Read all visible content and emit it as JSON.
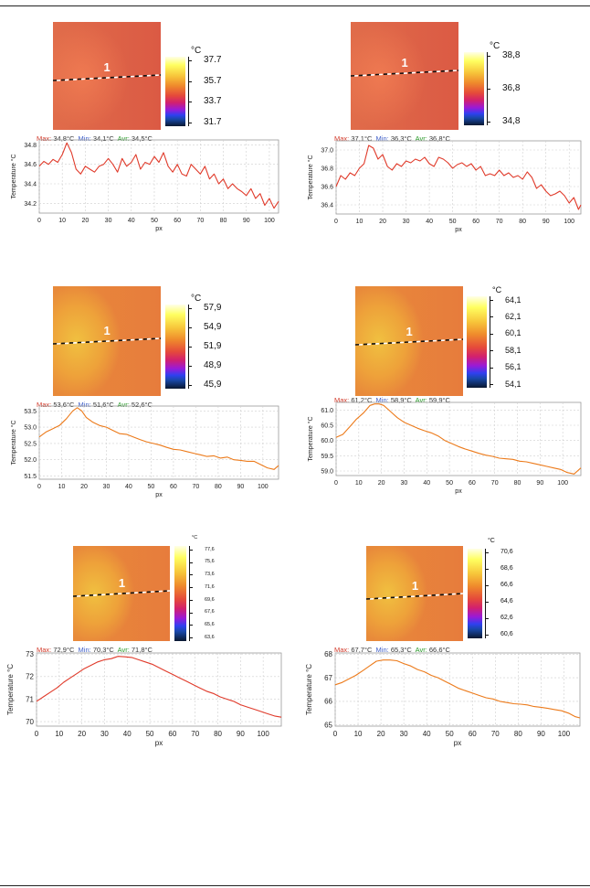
{
  "chart_data": [
    {
      "type": "line",
      "xlabel": "px",
      "ylabel": "Temperature °C",
      "line_color": "#e03a2a",
      "xlim": [
        0,
        104
      ],
      "ylim": [
        34.1,
        34.85
      ],
      "xticks": [
        "0",
        "10",
        "20",
        "30",
        "40",
        "50",
        "60",
        "70",
        "80",
        "90",
        "100"
      ],
      "yticks": [
        "34.2",
        "34.4",
        "34.6",
        "34.8"
      ],
      "yvals": [
        34.2,
        34.4,
        34.6,
        34.8
      ],
      "grid": true,
      "stats": {
        "max": "34,8°C",
        "min": "34,1°C",
        "avr": "34,5°C"
      },
      "marker_label": "1",
      "colorbar_unit": "°C",
      "colorbar_ticks": [
        "37.7",
        "35.7",
        "33.7",
        "31.7"
      ],
      "series": [
        {
          "x": [
            0,
            2,
            4,
            6,
            8,
            10,
            12,
            14,
            16,
            18,
            20,
            22,
            24,
            26,
            28,
            30,
            32,
            34,
            36,
            38,
            40,
            42,
            44,
            46,
            48,
            50,
            52,
            54,
            56,
            58,
            60,
            62,
            64,
            66,
            68,
            70,
            72,
            74,
            76,
            78,
            80,
            82,
            84,
            86,
            88,
            90,
            92,
            94,
            96,
            98,
            100,
            102,
            104
          ],
          "y": [
            34.58,
            34.63,
            34.6,
            34.65,
            34.62,
            34.7,
            34.82,
            34.72,
            34.55,
            34.5,
            34.58,
            34.55,
            34.52,
            34.58,
            34.6,
            34.66,
            34.6,
            34.52,
            34.66,
            34.58,
            34.62,
            34.7,
            34.55,
            34.62,
            34.6,
            34.68,
            34.62,
            34.72,
            34.58,
            34.52,
            34.6,
            34.5,
            34.48,
            34.6,
            34.55,
            34.5,
            34.58,
            34.45,
            34.5,
            34.4,
            34.45,
            34.35,
            34.4,
            34.35,
            34.32,
            34.28,
            34.35,
            34.25,
            34.3,
            34.18,
            34.25,
            34.15,
            34.22
          ]
        }
      ]
    },
    {
      "type": "line",
      "xlabel": "px",
      "ylabel": "Temperature °C",
      "line_color": "#e03a2a",
      "xlim": [
        0,
        105
      ],
      "ylim": [
        36.3,
        37.1
      ],
      "xticks": [
        "0",
        "10",
        "20",
        "30",
        "40",
        "50",
        "60",
        "70",
        "80",
        "90",
        "100"
      ],
      "yticks": [
        "36.4",
        "36.6",
        "36.8",
        "37.0"
      ],
      "yvals": [
        36.4,
        36.6,
        36.8,
        37.0
      ],
      "grid": true,
      "stats": {
        "max": "37,1°C",
        "min": "36,3°C",
        "avr": "36,8°C"
      },
      "marker_label": "1",
      "colorbar_unit": "°C",
      "colorbar_ticks": [
        "38,8",
        "36,8",
        "34,8"
      ],
      "series": [
        {
          "x": [
            0,
            2,
            4,
            6,
            8,
            10,
            12,
            14,
            16,
            18,
            20,
            22,
            24,
            26,
            28,
            30,
            32,
            34,
            36,
            38,
            40,
            42,
            44,
            46,
            48,
            50,
            52,
            54,
            56,
            58,
            60,
            62,
            64,
            66,
            68,
            70,
            72,
            74,
            76,
            78,
            80,
            82,
            84,
            86,
            88,
            90,
            92,
            94,
            96,
            98,
            100,
            102,
            104,
            105
          ],
          "y": [
            36.6,
            36.72,
            36.68,
            36.75,
            36.72,
            36.8,
            36.85,
            37.05,
            37.02,
            36.9,
            36.95,
            36.82,
            36.78,
            36.85,
            36.82,
            36.88,
            36.86,
            36.9,
            36.88,
            36.92,
            36.85,
            36.82,
            36.92,
            36.9,
            36.86,
            36.8,
            36.84,
            36.86,
            36.82,
            36.85,
            36.78,
            36.82,
            36.72,
            36.74,
            36.72,
            36.78,
            36.72,
            36.75,
            36.7,
            36.72,
            36.68,
            36.76,
            36.7,
            36.58,
            36.62,
            36.55,
            36.5,
            36.52,
            36.55,
            36.5,
            36.42,
            36.48,
            36.35,
            36.4
          ]
        }
      ]
    },
    {
      "type": "line",
      "xlabel": "px",
      "ylabel": "Temperature °C",
      "line_color": "#ec7a1a",
      "xlim": [
        0,
        107
      ],
      "ylim": [
        51.4,
        53.65
      ],
      "xticks": [
        "0",
        "10",
        "20",
        "30",
        "40",
        "50",
        "60",
        "70",
        "80",
        "90",
        "100"
      ],
      "yticks": [
        "51.5",
        "52.0",
        "52.5",
        "53.0",
        "53.5"
      ],
      "yvals": [
        51.5,
        52.0,
        52.5,
        53.0,
        53.5
      ],
      "grid": true,
      "stats": {
        "max": "53,6°C",
        "min": "51,6°C",
        "avr": "52,6°C"
      },
      "marker_label": "1",
      "colorbar_unit": "°C",
      "colorbar_ticks": [
        "57,9",
        "54,9",
        "51,9",
        "48,9",
        "45,9"
      ],
      "series": [
        {
          "x": [
            0,
            3,
            6,
            9,
            12,
            15,
            17,
            19,
            21,
            24,
            27,
            30,
            33,
            36,
            39,
            42,
            45,
            48,
            51,
            54,
            57,
            60,
            63,
            66,
            69,
            72,
            75,
            78,
            81,
            84,
            87,
            90,
            93,
            96,
            99,
            102,
            105,
            107
          ],
          "y": [
            52.7,
            52.85,
            52.95,
            53.05,
            53.25,
            53.5,
            53.6,
            53.5,
            53.3,
            53.15,
            53.05,
            53.0,
            52.9,
            52.8,
            52.78,
            52.7,
            52.62,
            52.55,
            52.5,
            52.45,
            52.38,
            52.32,
            52.3,
            52.25,
            52.2,
            52.15,
            52.1,
            52.12,
            52.05,
            52.08,
            52.0,
            51.98,
            51.95,
            51.95,
            51.85,
            51.75,
            51.7,
            51.82
          ]
        }
      ]
    },
    {
      "type": "line",
      "xlabel": "px",
      "ylabel": "Temperature °C",
      "line_color": "#ec7a1a",
      "xlim": [
        0,
        108
      ],
      "ylim": [
        58.85,
        61.25
      ],
      "xticks": [
        "0",
        "10",
        "20",
        "30",
        "40",
        "50",
        "60",
        "70",
        "80",
        "90",
        "100"
      ],
      "yticks": [
        "59.0",
        "59.5",
        "60.0",
        "60.5",
        "61.0"
      ],
      "yvals": [
        59.0,
        59.5,
        60.0,
        60.5,
        61.0
      ],
      "grid": true,
      "stats": {
        "max": "61,2°C",
        "min": "58,9°C",
        "avr": "59,9°C"
      },
      "marker_label": "1",
      "colorbar_unit": "°C",
      "colorbar_ticks": [
        "64,1",
        "62,1",
        "60,1",
        "58,1",
        "56,1",
        "54,1"
      ],
      "series": [
        {
          "x": [
            0,
            3,
            6,
            9,
            12,
            15,
            17,
            19,
            21,
            24,
            27,
            30,
            33,
            36,
            39,
            42,
            45,
            48,
            51,
            54,
            57,
            60,
            63,
            66,
            69,
            72,
            75,
            78,
            81,
            84,
            87,
            90,
            93,
            96,
            99,
            102,
            105,
            108
          ],
          "y": [
            60.1,
            60.2,
            60.45,
            60.7,
            60.9,
            61.15,
            61.2,
            61.2,
            61.15,
            60.95,
            60.75,
            60.6,
            60.5,
            60.4,
            60.32,
            60.25,
            60.15,
            60.0,
            59.9,
            59.8,
            59.72,
            59.65,
            59.58,
            59.52,
            59.48,
            59.42,
            59.4,
            59.38,
            59.32,
            59.3,
            59.25,
            59.2,
            59.15,
            59.1,
            59.05,
            58.95,
            58.9,
            59.1
          ]
        }
      ]
    },
    {
      "type": "line",
      "xlabel": "px",
      "ylabel": "Temperature °C",
      "line_color": "#e03a2a",
      "xlim": [
        0,
        108
      ],
      "ylim": [
        69.8,
        73.05
      ],
      "xticks": [
        "0",
        "10",
        "20",
        "30",
        "40",
        "50",
        "60",
        "70",
        "80",
        "90",
        "100"
      ],
      "yticks": [
        "70",
        "71",
        "72",
        "73"
      ],
      "yvals": [
        70,
        71,
        72,
        73
      ],
      "grid": true,
      "stats": {
        "max": "72,9°C",
        "min": "70,3°C",
        "avr": "71,8°C"
      },
      "marker_label": "1",
      "colorbar_unit": "°C",
      "colorbar_ticks": [
        "77,6",
        "75,6",
        "73,6",
        "71,6",
        "69,6",
        "67,6",
        "65,6",
        "63,6"
      ],
      "series": [
        {
          "x": [
            0,
            3,
            6,
            9,
            12,
            15,
            18,
            21,
            24,
            27,
            30,
            33,
            36,
            39,
            42,
            45,
            48,
            51,
            54,
            57,
            60,
            63,
            66,
            69,
            72,
            75,
            78,
            81,
            84,
            87,
            90,
            93,
            96,
            99,
            102,
            105,
            108
          ],
          "y": [
            70.9,
            71.1,
            71.3,
            71.5,
            71.75,
            71.95,
            72.15,
            72.35,
            72.5,
            72.65,
            72.75,
            72.8,
            72.9,
            72.88,
            72.85,
            72.75,
            72.65,
            72.55,
            72.4,
            72.25,
            72.1,
            71.95,
            71.8,
            71.65,
            71.5,
            71.35,
            71.25,
            71.1,
            71.0,
            70.9,
            70.75,
            70.65,
            70.55,
            70.45,
            70.35,
            70.25,
            70.2
          ]
        }
      ]
    },
    {
      "type": "line",
      "xlabel": "px",
      "ylabel": "Temperature °C",
      "line_color": "#ec7a1a",
      "xlim": [
        0,
        107
      ],
      "ylim": [
        64.95,
        68.05
      ],
      "xticks": [
        "0",
        "10",
        "20",
        "30",
        "40",
        "50",
        "60",
        "70",
        "80",
        "90",
        "100"
      ],
      "yticks": [
        "65",
        "66",
        "67",
        "68"
      ],
      "yvals": [
        65,
        66,
        67,
        68
      ],
      "grid": true,
      "stats": {
        "max": "67,7°C",
        "min": "65,3°C",
        "avr": "66,6°C"
      },
      "marker_label": "1",
      "colorbar_unit": "°C",
      "colorbar_ticks": [
        "70,6",
        "68,6",
        "66,6",
        "64,6",
        "62,6",
        "60,6"
      ],
      "series": [
        {
          "x": [
            0,
            3,
            6,
            9,
            12,
            15,
            18,
            21,
            24,
            27,
            30,
            33,
            36,
            39,
            42,
            45,
            48,
            51,
            54,
            57,
            60,
            63,
            66,
            69,
            72,
            75,
            78,
            81,
            84,
            87,
            90,
            93,
            96,
            99,
            102,
            105,
            107
          ],
          "y": [
            66.7,
            66.8,
            66.95,
            67.1,
            67.3,
            67.5,
            67.7,
            67.75,
            67.75,
            67.72,
            67.6,
            67.5,
            67.35,
            67.25,
            67.1,
            67.0,
            66.85,
            66.7,
            66.55,
            66.45,
            66.35,
            66.25,
            66.15,
            66.1,
            66.0,
            65.95,
            65.9,
            65.88,
            65.85,
            65.78,
            65.75,
            65.7,
            65.65,
            65.6,
            65.5,
            65.35,
            65.3
          ]
        }
      ]
    }
  ]
}
